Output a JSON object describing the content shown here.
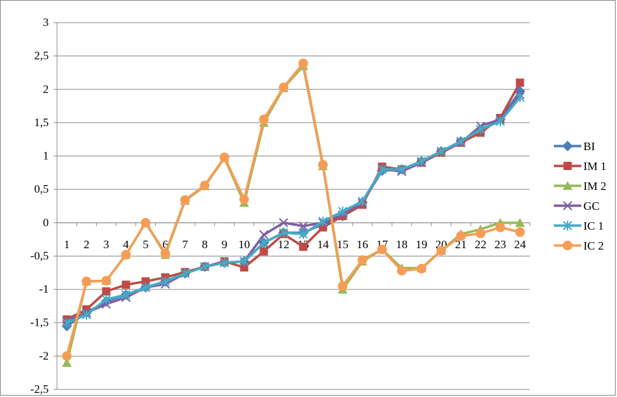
{
  "chart_data": {
    "type": "line",
    "x": [
      1,
      2,
      3,
      4,
      5,
      6,
      7,
      8,
      9,
      10,
      11,
      12,
      13,
      14,
      15,
      16,
      17,
      18,
      19,
      20,
      21,
      22,
      23,
      24
    ],
    "ylim": [
      -2.5,
      3
    ],
    "yticks": [
      3,
      2.5,
      2,
      1.5,
      1,
      0.5,
      0,
      -0.5,
      -1,
      -1.5,
      -2,
      -2.5
    ],
    "ytick_labels": [
      "3",
      "2,5",
      "2",
      "1,5",
      "1",
      "0,5",
      "0",
      "-0,5",
      "-1",
      "-1,5",
      "-2",
      "-2,5"
    ],
    "xtick_labels": [
      "1",
      "2",
      "3",
      "4",
      "5",
      "6",
      "7",
      "8",
      "9",
      "10",
      "11",
      "12",
      "13",
      "14",
      "15",
      "16",
      "17",
      "18",
      "19",
      "20",
      "21",
      "22",
      "23",
      "24"
    ],
    "grid": "horizontal",
    "legend_position": "right",
    "title": "",
    "xlabel": "",
    "ylabel": "",
    "series": [
      {
        "name": "BI",
        "color": "#4A7EBB",
        "marker": "diamond",
        "values": [
          -1.55,
          -1.35,
          -1.18,
          -1.08,
          -0.97,
          -0.88,
          -0.76,
          -0.66,
          -0.6,
          -0.58,
          -0.3,
          -0.15,
          -0.15,
          -0.02,
          0.1,
          0.3,
          0.78,
          0.8,
          0.92,
          1.07,
          1.22,
          1.38,
          1.55,
          1.97
        ]
      },
      {
        "name": "IM 1",
        "color": "#BE4B48",
        "marker": "square",
        "values": [
          -1.45,
          -1.3,
          -1.03,
          -0.93,
          -0.88,
          -0.82,
          -0.74,
          -0.66,
          -0.58,
          -0.67,
          -0.43,
          -0.17,
          -0.36,
          -0.07,
          0.1,
          0.27,
          0.84,
          0.8,
          0.9,
          1.05,
          1.2,
          1.35,
          1.57,
          2.1
        ]
      },
      {
        "name": "IM 2",
        "color": "#98B954",
        "marker": "triangle",
        "values": [
          -2.1,
          -0.88,
          -0.87,
          -0.48,
          0.0,
          -0.48,
          0.33,
          0.55,
          0.97,
          0.3,
          1.5,
          2.02,
          2.35,
          0.85,
          -1.0,
          -0.58,
          -0.4,
          -0.68,
          -0.68,
          -0.42,
          -0.17,
          -0.1,
          0.0,
          0.0
        ]
      },
      {
        "name": "GC",
        "color": "#7D60A0",
        "marker": "x",
        "values": [
          -1.48,
          -1.35,
          -1.22,
          -1.12,
          -0.97,
          -0.92,
          -0.76,
          -0.66,
          -0.6,
          -0.58,
          -0.18,
          0.0,
          -0.05,
          0.0,
          0.12,
          0.3,
          0.8,
          0.77,
          0.9,
          1.07,
          1.2,
          1.45,
          1.55,
          1.92
        ]
      },
      {
        "name": "IC 1",
        "color": "#46AAC5",
        "marker": "star",
        "values": [
          -1.5,
          -1.38,
          -1.15,
          -1.08,
          -0.97,
          -0.88,
          -0.76,
          -0.66,
          -0.6,
          -0.58,
          -0.3,
          -0.15,
          -0.17,
          0.02,
          0.17,
          0.32,
          0.8,
          0.8,
          0.92,
          1.07,
          1.22,
          1.4,
          1.52,
          1.88
        ]
      },
      {
        "name": "IC 2",
        "color": "#F59D56",
        "marker": "circle",
        "values": [
          -2.0,
          -0.88,
          -0.87,
          -0.48,
          0.0,
          -0.46,
          0.34,
          0.56,
          0.98,
          0.35,
          1.55,
          2.03,
          2.39,
          0.87,
          -0.95,
          -0.56,
          -0.4,
          -0.72,
          -0.69,
          -0.42,
          -0.2,
          -0.16,
          -0.07,
          -0.14
        ]
      }
    ]
  }
}
